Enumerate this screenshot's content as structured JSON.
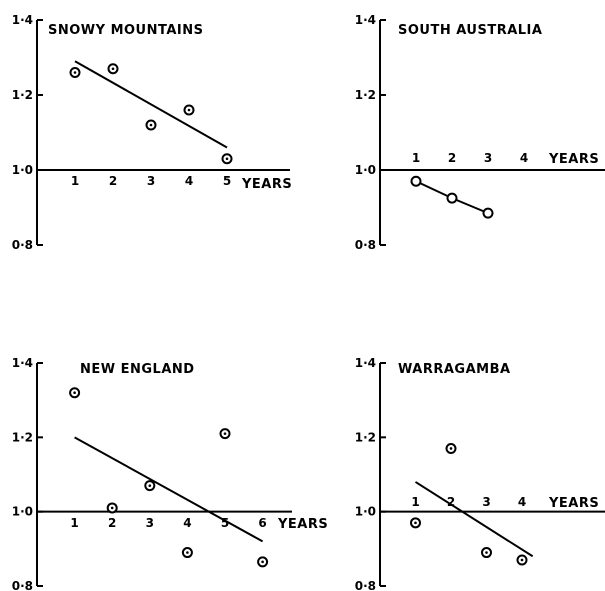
{
  "chart_data": [
    {
      "type": "scatter",
      "title": "SNOWY MOUNTAINS",
      "x_unit_label": "YEARS",
      "x_ticks": [
        "1",
        "2",
        "3",
        "4",
        "5"
      ],
      "y_ticks": [
        "1·4",
        "1·2",
        "1·0",
        "0·8"
      ],
      "ylim": [
        0.8,
        1.4
      ],
      "xlim": [
        0,
        6.6
      ],
      "x_axis_at": 1.0,
      "connected": false,
      "points": [
        {
          "x": 1,
          "y": 1.26
        },
        {
          "x": 2,
          "y": 1.27
        },
        {
          "x": 3,
          "y": 1.12
        },
        {
          "x": 4,
          "y": 1.16
        },
        {
          "x": 5,
          "y": 1.03
        }
      ],
      "trend_line": {
        "x": [
          1,
          5
        ],
        "y": [
          1.29,
          1.06
        ]
      }
    },
    {
      "type": "line",
      "title": "SOUTH AUSTRALIA",
      "x_unit_label": "YEARS",
      "x_ticks": [
        "1",
        "2",
        "3",
        "4"
      ],
      "y_ticks": [
        "1·4",
        "1·2",
        "1·0",
        "0·8"
      ],
      "ylim": [
        0.8,
        1.4
      ],
      "xlim": [
        0,
        6.2
      ],
      "x_axis_at": 1.0,
      "connected": true,
      "points": [
        {
          "x": 1,
          "y": 0.97
        },
        {
          "x": 2,
          "y": 0.925
        },
        {
          "x": 3,
          "y": 0.885
        }
      ]
    },
    {
      "type": "scatter",
      "title": "NEW ENGLAND",
      "x_unit_label": "YEARS",
      "x_ticks": [
        "1",
        "2",
        "3",
        "4",
        "5",
        "6"
      ],
      "y_ticks": [
        "1·4",
        "1·2",
        "1·0",
        "0·8"
      ],
      "ylim": [
        0.8,
        1.4
      ],
      "xlim": [
        0,
        6.6
      ],
      "x_axis_at": 1.0,
      "connected": false,
      "points": [
        {
          "x": 1,
          "y": 1.32
        },
        {
          "x": 2,
          "y": 1.01
        },
        {
          "x": 3,
          "y": 1.07
        },
        {
          "x": 4,
          "y": 0.89
        },
        {
          "x": 5,
          "y": 1.21
        },
        {
          "x": 6,
          "y": 0.865
        }
      ],
      "trend_line": {
        "x": [
          1,
          6
        ],
        "y": [
          1.2,
          0.92
        ]
      }
    },
    {
      "type": "scatter",
      "title": "WARRAGAMBA",
      "x_unit_label": "YEARS",
      "x_ticks": [
        "1",
        "2",
        "3",
        "4"
      ],
      "y_ticks": [
        "1·4",
        "1·2",
        "1·0",
        "0·8"
      ],
      "ylim": [
        0.8,
        1.4
      ],
      "xlim": [
        0,
        6.2
      ],
      "x_axis_at": 1.0,
      "connected": false,
      "points": [
        {
          "x": 1,
          "y": 0.97
        },
        {
          "x": 2,
          "y": 1.17
        },
        {
          "x": 3,
          "y": 0.89
        },
        {
          "x": 4,
          "y": 0.87
        }
      ],
      "trend_line": {
        "x": [
          1,
          4.3
        ],
        "y": [
          1.08,
          0.88
        ]
      }
    }
  ]
}
